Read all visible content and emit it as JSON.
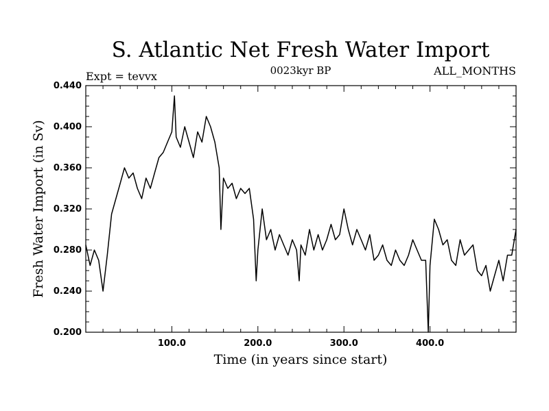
{
  "chart_data": {
    "type": "line",
    "title": "S. Atlantic Net Fresh Water Import",
    "subtitle": "0023kyr BP",
    "left_label": "Expt = tevvx",
    "right_label": "ALL_MONTHS",
    "xlabel": "Time (in years since start)",
    "ylabel": "Fresh Water Import (in Sv)",
    "xlim": [
      0,
      500
    ],
    "ylim": [
      0.2,
      0.44
    ],
    "xticks": [
      100,
      200,
      300,
      400
    ],
    "xtick_labels": [
      "100.0",
      "200.0",
      "300.0",
      "400.0"
    ],
    "yticks": [
      0.2,
      0.24,
      0.28,
      0.32,
      0.36,
      0.4,
      0.44
    ],
    "ytick_labels": [
      "0.200",
      "0.240",
      "0.280",
      "0.320",
      "0.360",
      "0.400",
      "0.440"
    ],
    "grid": false,
    "line_color": "#000000",
    "series": [
      {
        "x": [
          0,
          5,
          10,
          15,
          20,
          25,
          30,
          35,
          40,
          45,
          50,
          55,
          60,
          65,
          70,
          75,
          80,
          85,
          90,
          95,
          100,
          103,
          105,
          110,
          115,
          120,
          125,
          130,
          135,
          140,
          145,
          150,
          155,
          157,
          160,
          165,
          170,
          175,
          180,
          185,
          190,
          195,
          198,
          200,
          205,
          210,
          215,
          220,
          225,
          230,
          235,
          240,
          245,
          248,
          250,
          255,
          260,
          265,
          270,
          275,
          280,
          285,
          290,
          295,
          300,
          305,
          310,
          315,
          320,
          325,
          330,
          335,
          340,
          345,
          350,
          355,
          360,
          365,
          370,
          375,
          380,
          385,
          390,
          395,
          398,
          400,
          405,
          410,
          415,
          420,
          425,
          430,
          435,
          440,
          445,
          450,
          455,
          460,
          465,
          470,
          475,
          480,
          485,
          490,
          495,
          500
        ],
        "y": [
          0.285,
          0.265,
          0.28,
          0.27,
          0.24,
          0.275,
          0.315,
          0.33,
          0.345,
          0.36,
          0.35,
          0.355,
          0.34,
          0.33,
          0.35,
          0.34,
          0.355,
          0.37,
          0.375,
          0.385,
          0.395,
          0.43,
          0.39,
          0.38,
          0.4,
          0.385,
          0.37,
          0.395,
          0.385,
          0.41,
          0.4,
          0.385,
          0.36,
          0.3,
          0.35,
          0.34,
          0.345,
          0.33,
          0.34,
          0.335,
          0.34,
          0.31,
          0.25,
          0.28,
          0.32,
          0.29,
          0.3,
          0.28,
          0.295,
          0.285,
          0.275,
          0.29,
          0.28,
          0.25,
          0.285,
          0.275,
          0.3,
          0.28,
          0.295,
          0.28,
          0.29,
          0.305,
          0.29,
          0.295,
          0.32,
          0.3,
          0.285,
          0.3,
          0.29,
          0.28,
          0.295,
          0.27,
          0.275,
          0.285,
          0.27,
          0.265,
          0.28,
          0.27,
          0.265,
          0.275,
          0.29,
          0.28,
          0.27,
          0.27,
          0.2,
          0.265,
          0.31,
          0.3,
          0.285,
          0.29,
          0.27,
          0.265,
          0.29,
          0.275,
          0.28,
          0.285,
          0.26,
          0.255,
          0.265,
          0.24,
          0.255,
          0.27,
          0.25,
          0.275,
          0.275,
          0.3
        ]
      }
    ]
  }
}
